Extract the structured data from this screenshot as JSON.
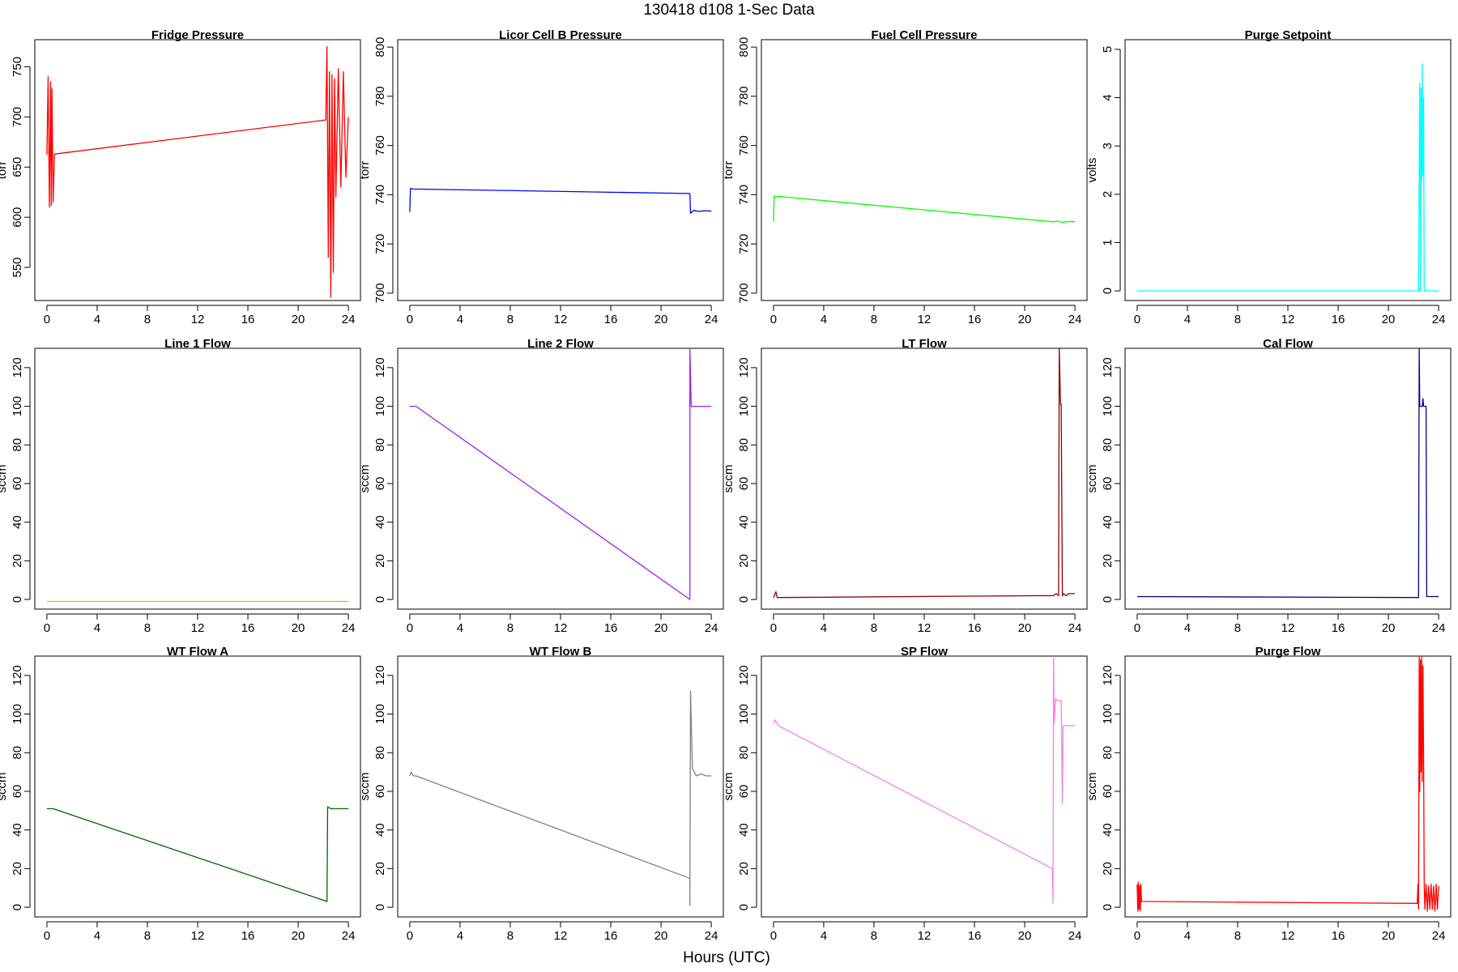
{
  "figure": {
    "title": "130418   d108   1-Sec Data",
    "xlabel": "Hours (UTC)"
  },
  "chart_data": [
    {
      "type": "line",
      "title": "Fridge Pressure",
      "ylabel": "torr",
      "color": "#ff0000",
      "xlim": [
        -0.96,
        24.96
      ],
      "ylim": [
        517,
        777
      ],
      "xticks": [
        0,
        4,
        8,
        12,
        16,
        20,
        24
      ],
      "yticks": [
        550,
        600,
        650,
        700,
        750
      ],
      "x": [
        0,
        0.1,
        0.2,
        0.3,
        0.35,
        0.4,
        0.5,
        0.6,
        22.2,
        22.3,
        22.4,
        22.5,
        22.6,
        22.7,
        22.8,
        22.9,
        23.0,
        23.2,
        23.4,
        23.6,
        23.8,
        24.0
      ],
      "y": [
        662,
        740,
        610,
        735,
        612,
        728,
        615,
        663,
        697,
        770,
        560,
        745,
        520,
        742,
        545,
        738,
        620,
        748,
        630,
        745,
        640,
        700
      ]
    },
    {
      "type": "line",
      "title": "Licor Cell B Pressure",
      "ylabel": "torr",
      "color": "#0000ff",
      "xlim": [
        -0.96,
        24.96
      ],
      "ylim": [
        697,
        803
      ],
      "xticks": [
        0,
        4,
        8,
        12,
        16,
        20,
        24
      ],
      "yticks": [
        700,
        720,
        740,
        760,
        780,
        800
      ],
      "x": [
        0,
        0.05,
        0.2,
        0.4,
        22.3,
        22.35,
        22.6,
        23.0,
        23.5,
        24.0
      ],
      "y": [
        733,
        742.5,
        742.4,
        742.3,
        740.5,
        732.5,
        733.6,
        733.2,
        733.5,
        733.3
      ]
    },
    {
      "type": "line",
      "title": "Fuel Cell Pressure",
      "ylabel": "torr",
      "color": "#00ff00",
      "xlim": [
        -0.96,
        24.96
      ],
      "ylim": [
        697,
        803
      ],
      "xticks": [
        0,
        4,
        8,
        12,
        16,
        20,
        24
      ],
      "yticks": [
        700,
        720,
        740,
        760,
        780,
        800
      ],
      "x": [
        0,
        0.05,
        0.2,
        0.4,
        22.3,
        22.5,
        23.0,
        23.5,
        24.0
      ],
      "y": [
        729,
        739.5,
        739,
        739.3,
        729,
        729.3,
        728.8,
        729.1,
        729
      ]
    },
    {
      "type": "line",
      "title": "Purge Setpoint",
      "ylabel": "volts",
      "color": "#00ffff",
      "xlim": [
        -0.96,
        24.96
      ],
      "ylim": [
        -0.2,
        5.2
      ],
      "xticks": [
        0,
        4,
        8,
        12,
        16,
        20,
        24
      ],
      "yticks": [
        0,
        1,
        2,
        3,
        4,
        5
      ],
      "x": [
        0,
        22.4,
        22.5,
        22.55,
        22.6,
        22.65,
        22.7,
        22.75,
        22.8,
        22.85,
        22.9,
        24.0
      ],
      "y": [
        0,
        0,
        4.3,
        0,
        4.2,
        2.3,
        4.7,
        2.4,
        4.0,
        0,
        0,
        0
      ]
    },
    {
      "type": "line",
      "title": "Line 1 Flow",
      "ylabel": "sccm",
      "color": "#ffa500",
      "xlim": [
        -0.96,
        24.96
      ],
      "ylim": [
        -5,
        130
      ],
      "xticks": [
        0,
        4,
        8,
        12,
        16,
        20,
        24
      ],
      "yticks": [
        0,
        20,
        40,
        60,
        80,
        100,
        120
      ],
      "x": [
        0,
        24
      ],
      "y": [
        -1,
        -1
      ]
    },
    {
      "type": "line",
      "title": "Line 2 Flow",
      "ylabel": "sccm",
      "color": "#a020f0",
      "xlim": [
        -0.96,
        24.96
      ],
      "ylim": [
        -5,
        130
      ],
      "xticks": [
        0,
        4,
        8,
        12,
        16,
        20,
        24
      ],
      "yticks": [
        0,
        20,
        40,
        60,
        80,
        100,
        120
      ],
      "x": [
        0,
        0.5,
        22.3,
        22.3,
        22.4,
        24.0
      ],
      "y": [
        100,
        100,
        0,
        130,
        100,
        100
      ]
    },
    {
      "type": "line",
      "title": "LT Flow",
      "ylabel": "sccm",
      "color": "#8b0000",
      "xlim": [
        -0.96,
        24.96
      ],
      "ylim": [
        -5,
        130
      ],
      "xticks": [
        0,
        4,
        8,
        12,
        16,
        20,
        24
      ],
      "yticks": [
        0,
        20,
        40,
        60,
        80,
        100,
        120
      ],
      "x": [
        0,
        0.2,
        0.3,
        22.3,
        22.5,
        22.7,
        22.75,
        22.85,
        22.9,
        23.0,
        23.1,
        23.3,
        23.5,
        24.0
      ],
      "y": [
        1,
        4,
        1,
        2,
        3,
        2,
        130,
        101,
        101,
        2,
        3,
        2,
        3,
        3
      ]
    },
    {
      "type": "line",
      "title": "Cal Flow",
      "ylabel": "sccm",
      "color": "#00008b",
      "xlim": [
        -0.96,
        24.96
      ],
      "ylim": [
        -5,
        130
      ],
      "xticks": [
        0,
        4,
        8,
        12,
        16,
        20,
        24
      ],
      "yticks": [
        0,
        20,
        40,
        60,
        80,
        100,
        120
      ],
      "x": [
        0,
        22.4,
        22.45,
        22.5,
        22.7,
        22.75,
        22.8,
        23.0,
        23.05,
        24.0
      ],
      "y": [
        1.5,
        1,
        130,
        100,
        100,
        104,
        100,
        100,
        1.5,
        1.5
      ]
    },
    {
      "type": "line",
      "title": "WT Flow A",
      "ylabel": "sccm",
      "color": "#006400",
      "xlim": [
        -0.96,
        24.96
      ],
      "ylim": [
        -5,
        130
      ],
      "xticks": [
        0,
        4,
        8,
        12,
        16,
        20,
        24
      ],
      "yticks": [
        0,
        20,
        40,
        60,
        80,
        100,
        120
      ],
      "x": [
        0,
        0.5,
        22.3,
        22.35,
        22.6,
        24.0
      ],
      "y": [
        51,
        51,
        3,
        52,
        51,
        51
      ]
    },
    {
      "type": "line",
      "title": "WT Flow B",
      "ylabel": "sccm",
      "color": "#808080",
      "xlim": [
        -0.96,
        24.96
      ],
      "ylim": [
        -5,
        130
      ],
      "xticks": [
        0,
        4,
        8,
        12,
        16,
        20,
        24
      ],
      "yticks": [
        0,
        20,
        40,
        60,
        80,
        100,
        120
      ],
      "x": [
        0,
        0.1,
        0.3,
        0.5,
        22.3,
        22.3,
        22.35,
        22.5,
        22.8,
        23.2,
        23.6,
        24.0
      ],
      "y": [
        68,
        70,
        68,
        68,
        15,
        1,
        112,
        72,
        68,
        69,
        68,
        68
      ]
    },
    {
      "type": "line",
      "title": "SP Flow",
      "ylabel": "sccm",
      "color": "#ee82ee",
      "xlim": [
        -0.96,
        24.96
      ],
      "ylim": [
        -5,
        130
      ],
      "xticks": [
        0,
        4,
        8,
        12,
        16,
        20,
        24
      ],
      "yticks": [
        0,
        20,
        40,
        60,
        80,
        100,
        120
      ],
      "x": [
        0,
        0.1,
        0.4,
        22.2,
        22.25,
        22.3,
        22.35,
        22.45,
        22.6,
        22.9,
        23.0,
        23.05,
        23.1,
        23.3,
        24.0
      ],
      "y": [
        95,
        97,
        94,
        20,
        2,
        130,
        95,
        108,
        107,
        107,
        54,
        94,
        94,
        94,
        94
      ]
    },
    {
      "type": "line",
      "title": "Purge Flow",
      "ylabel": "sccm",
      "color": "#ff0000",
      "xlim": [
        -0.96,
        24.96
      ],
      "ylim": [
        -5,
        130
      ],
      "xticks": [
        0,
        4,
        8,
        12,
        16,
        20,
        24
      ],
      "yticks": [
        0,
        20,
        40,
        60,
        80,
        100,
        120
      ],
      "x": [
        0,
        0.05,
        0.1,
        0.15,
        0.2,
        0.25,
        0.3,
        0.35,
        22.3,
        22.35,
        22.4,
        22.45,
        22.5,
        22.55,
        22.6,
        22.65,
        22.7,
        22.75,
        22.8,
        22.85,
        22.9,
        23.0,
        23.1,
        23.2,
        23.3,
        23.4,
        23.5,
        23.6,
        23.7,
        23.8,
        23.9,
        24.0
      ],
      "y": [
        12,
        -2,
        13,
        -1,
        11,
        -2,
        12,
        3,
        2,
        12,
        -1,
        130,
        60,
        128,
        70,
        130,
        65,
        125,
        80,
        12,
        -1,
        12,
        -2,
        11,
        -1,
        12,
        -1,
        11,
        -2,
        12,
        -1,
        11
      ]
    }
  ]
}
